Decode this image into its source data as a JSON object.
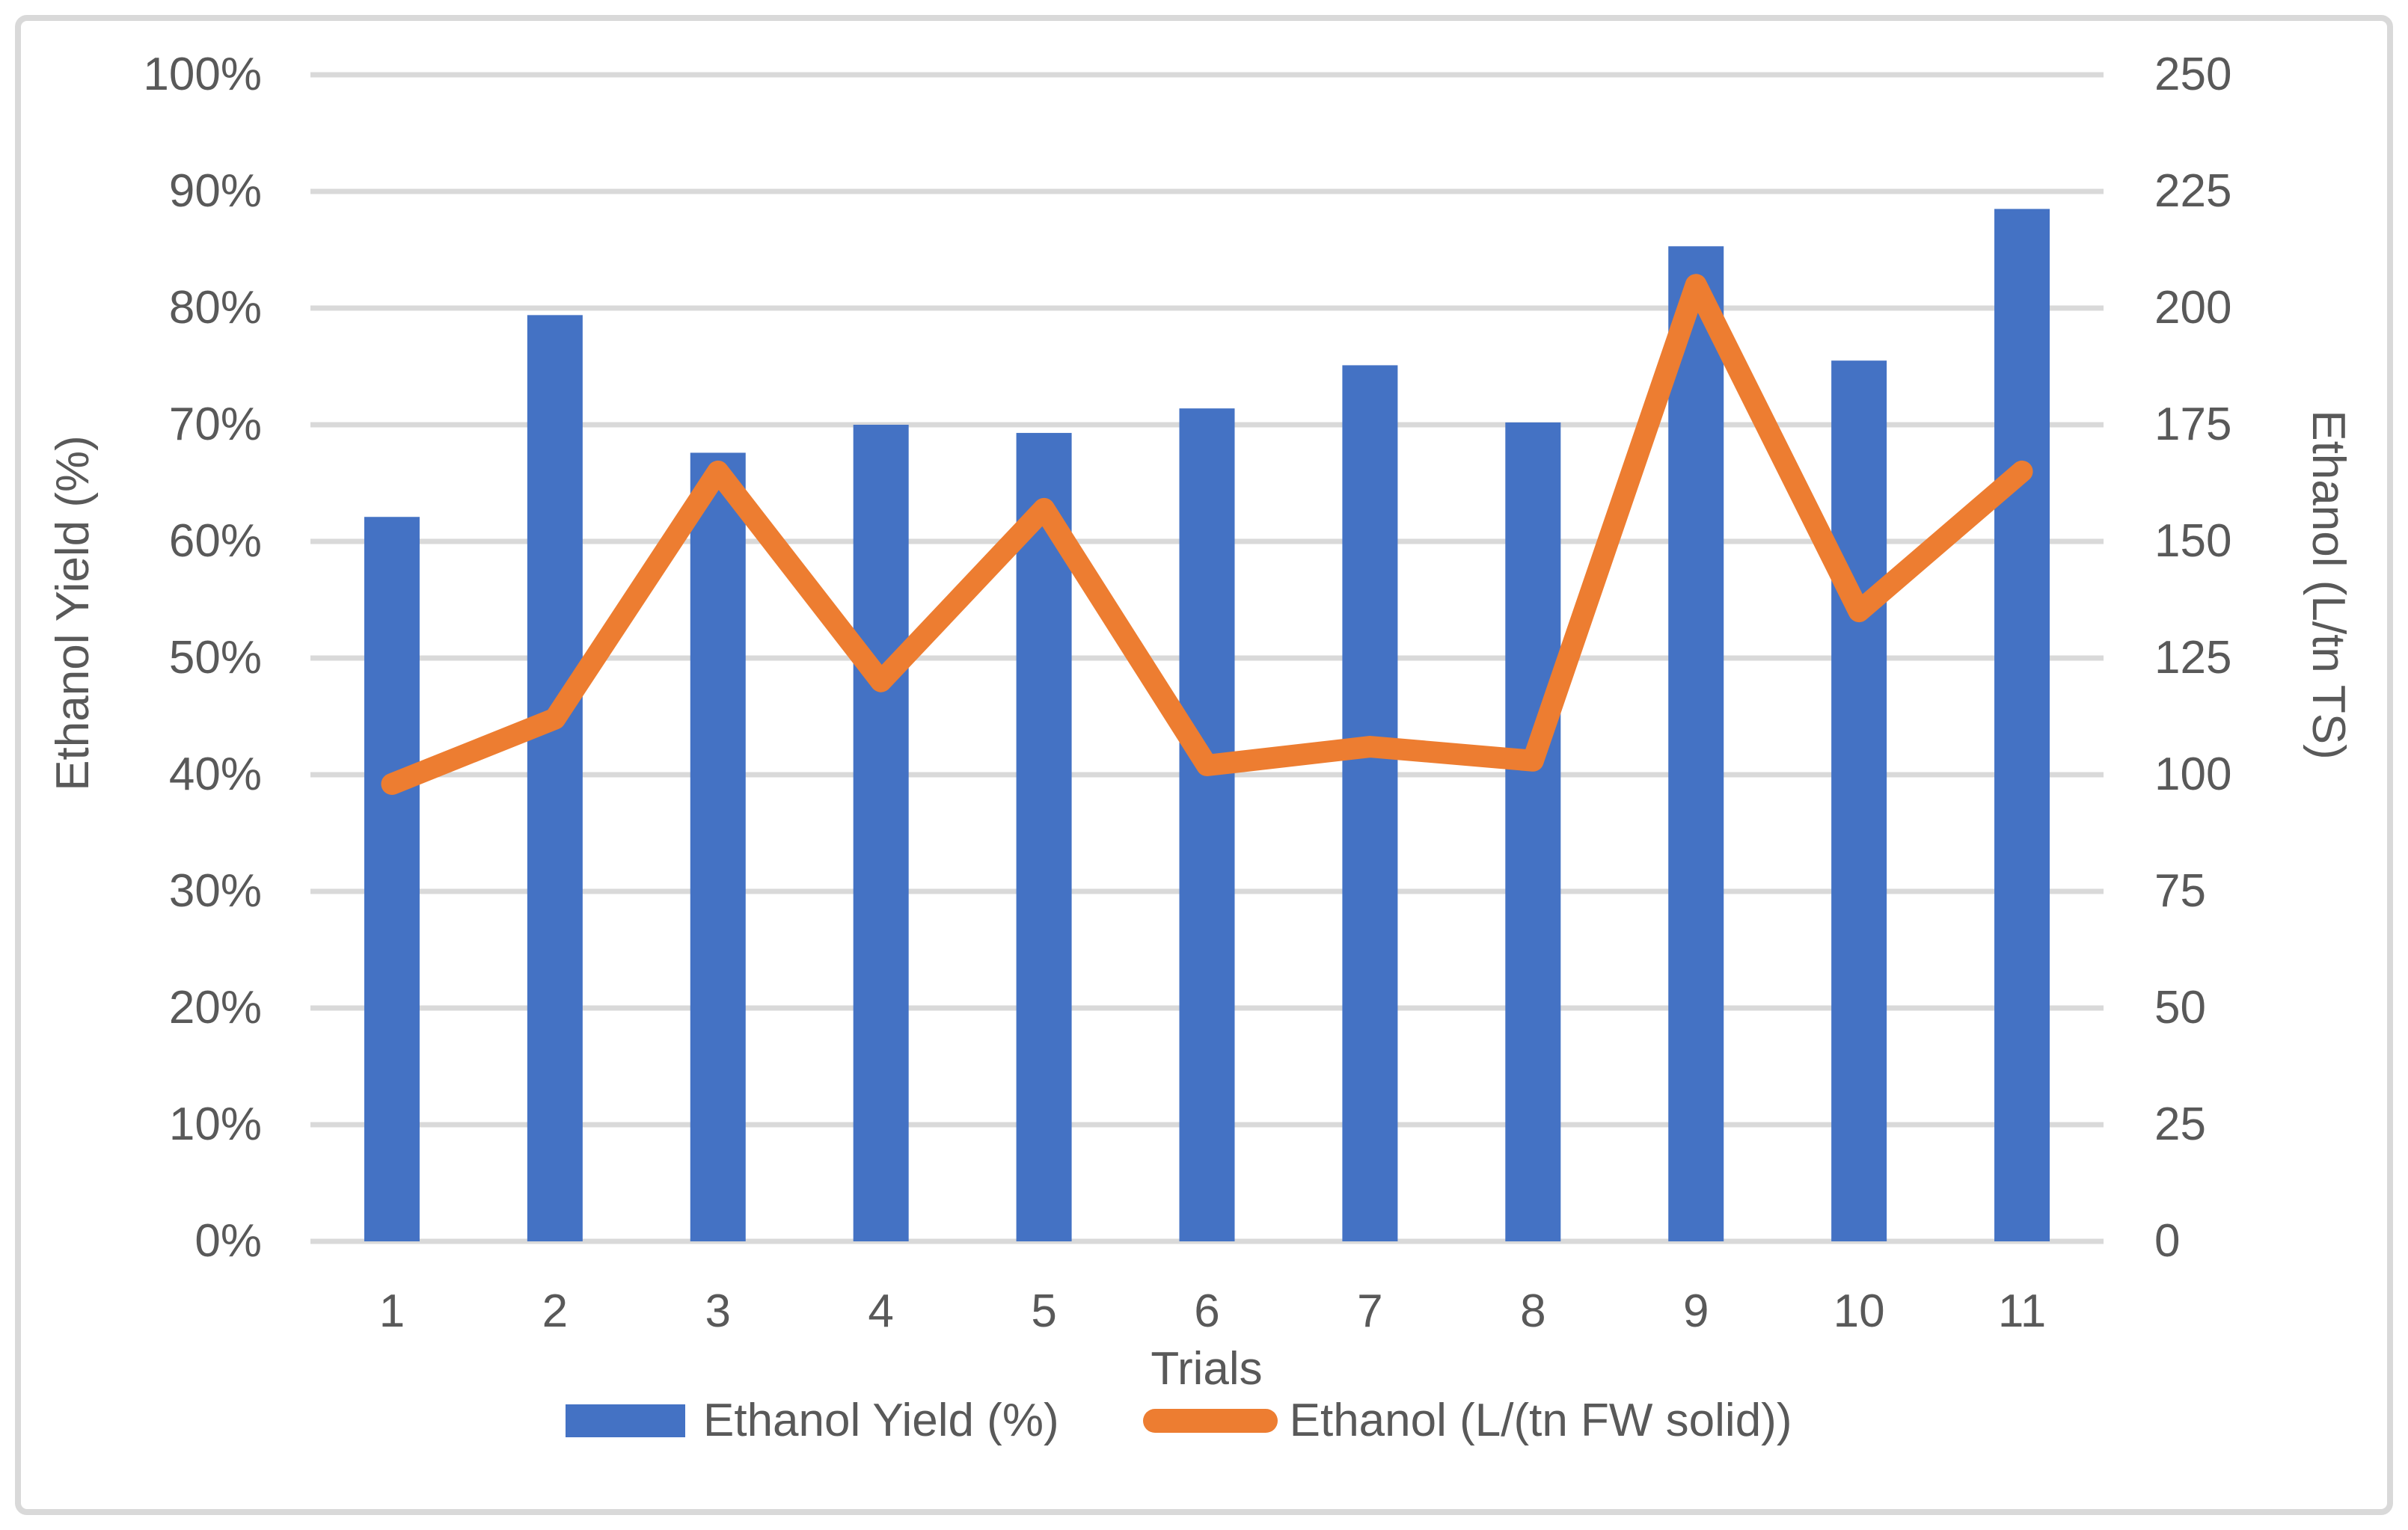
{
  "chart_data": {
    "type": "combo",
    "title": "",
    "categories": [
      "1",
      "2",
      "3",
      "4",
      "5",
      "6",
      "7",
      "8",
      "9",
      "10",
      "11"
    ],
    "series": [
      {
        "name": "Ethanol Yield (%)",
        "type": "bar",
        "axis": "left",
        "color": "#4472C4",
        "values": [
          62.1,
          79.4,
          67.6,
          70.0,
          69.3,
          71.4,
          75.1,
          70.2,
          85.3,
          75.5,
          88.5
        ]
      },
      {
        "name": "Ethanol (L/(tn FW solid))",
        "type": "line",
        "axis": "right",
        "color": "#ED7D31",
        "values": [
          98,
          112,
          165,
          120,
          157,
          102,
          106,
          103,
          205,
          135,
          165
        ]
      }
    ],
    "x_axis": {
      "title": "Trials"
    },
    "left_axis": {
      "title": "Ethanol Yield (%)",
      "min": 0,
      "max": 100,
      "ticks": [
        "0%",
        "10%",
        "20%",
        "30%",
        "40%",
        "50%",
        "60%",
        "70%",
        "80%",
        "90%",
        "100%"
      ]
    },
    "right_axis": {
      "title": "Ethanol (L/tn TS)",
      "min": 0,
      "max": 250,
      "ticks": [
        "0",
        "25",
        "50",
        "75",
        "100",
        "125",
        "150",
        "175",
        "200",
        "225",
        "250"
      ]
    },
    "grid": true,
    "legend_position": "bottom"
  },
  "style": {
    "bar_color": "#4472C4",
    "line_color": "#ED7D31",
    "grid_color": "#D9D9D9",
    "border_color": "#D9D9D9",
    "text_color": "#595959",
    "background": "#FFFFFF"
  }
}
